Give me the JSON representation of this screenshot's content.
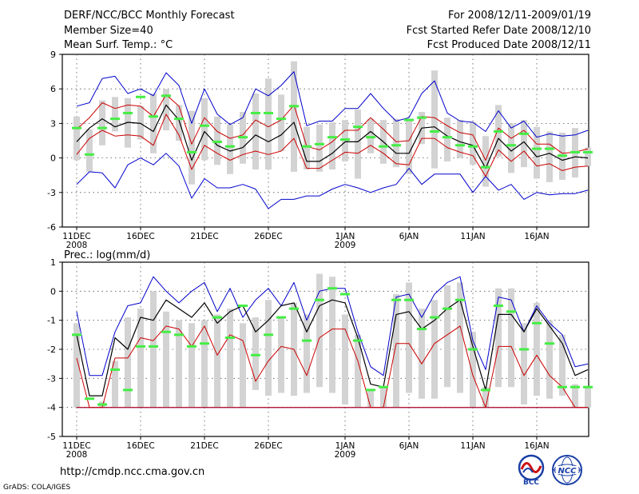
{
  "header": {
    "title": "DERF/NCC/BCC Monthly Forecast",
    "member_size": "Member Size=40",
    "variable_label": "Mean Surf. Temp.: °C",
    "forecast_period": "For 2008/12/11-2009/01/19",
    "started_refer": "Fcst Started Refer Date 2008/12/10",
    "produced": "Fcst Produced Date 2008/12/11"
  },
  "footer": {
    "url": "http://cmdp.ncc.cma.gov.cn",
    "credit": "GrADS: COLA/IGES",
    "logo1_text": "BCC",
    "logo2_text": "NCC"
  },
  "colors": {
    "bar": "#d3d3d3",
    "mean": "#000000",
    "spread_inner": "#cc0000",
    "spread_outer": "#0000cc",
    "marker": "#44ee44",
    "grid": "#555555"
  },
  "chart_data": [
    {
      "type": "line",
      "title": "",
      "ylabel": "Mean Surf. Temp.: °C",
      "ylim": [
        -6,
        9
      ],
      "yticks": [
        -6,
        -3,
        0,
        3,
        6,
        9
      ],
      "x_ticks": [
        {
          "day": 0,
          "label": "11DEC",
          "sub": "2008"
        },
        {
          "day": 5,
          "label": "16DEC",
          "sub": ""
        },
        {
          "day": 10,
          "label": "21DEC",
          "sub": ""
        },
        {
          "day": 15,
          "label": "26DEC",
          "sub": ""
        },
        {
          "day": 21,
          "label": "1JAN",
          "sub": "2009"
        },
        {
          "day": 26,
          "label": "6JAN",
          "sub": ""
        },
        {
          "day": 31,
          "label": "11JAN",
          "sub": ""
        },
        {
          "day": 36,
          "label": "16JAN",
          "sub": ""
        }
      ],
      "mean": [
        1.4,
        2.6,
        3.4,
        2.7,
        3.1,
        3.0,
        2.3,
        4.6,
        3.3,
        -0.2,
        2.3,
        1.1,
        0.6,
        0.9,
        2.0,
        1.4,
        2.0,
        3.1,
        -0.3,
        -0.3,
        0.4,
        1.4,
        1.4,
        2.3,
        1.4,
        0.4,
        0.4,
        2.6,
        2.7,
        1.9,
        1.4,
        1.1,
        -0.9,
        1.7,
        0.6,
        1.4,
        0.1,
        0.4,
        -0.2,
        0.1,
        0.0
      ],
      "red_upper": [
        2.5,
        3.5,
        4.8,
        4.3,
        4.6,
        4.5,
        3.6,
        5.5,
        4.5,
        1.2,
        3.5,
        2.3,
        1.7,
        2.0,
        3.3,
        2.7,
        3.3,
        4.6,
        1.0,
        0.7,
        1.4,
        2.4,
        2.4,
        3.5,
        2.5,
        1.4,
        1.5,
        3.6,
        3.5,
        2.8,
        2.2,
        2.0,
        -0.2,
        2.6,
        1.7,
        2.4,
        1.2,
        1.2,
        0.4,
        0.5,
        0.8
      ],
      "red_lower": [
        0.3,
        1.7,
        2.4,
        1.9,
        2.0,
        1.9,
        1.1,
        3.8,
        2.0,
        -1.0,
        1.1,
        0.4,
        -0.2,
        0.3,
        0.6,
        0.3,
        0.6,
        1.7,
        -0.9,
        -0.9,
        -0.2,
        0.5,
        0.4,
        1.1,
        0.4,
        -0.5,
        -0.6,
        1.7,
        1.7,
        0.9,
        0.5,
        0.2,
        -1.6,
        0.7,
        -0.3,
        0.6,
        -0.7,
        -0.5,
        -1.1,
        -0.8,
        -0.7
      ],
      "blue_upper": [
        4.5,
        4.8,
        6.9,
        7.1,
        5.6,
        6.0,
        5.4,
        7.4,
        6.3,
        3.0,
        6.0,
        3.8,
        2.9,
        3.5,
        6.0,
        5.4,
        6.3,
        7.5,
        2.8,
        3.2,
        3.2,
        4.3,
        4.3,
        5.6,
        4.3,
        3.2,
        3.5,
        5.6,
        6.7,
        3.9,
        3.2,
        3.1,
        2.3,
        4.1,
        2.6,
        3.2,
        1.8,
        2.1,
        1.9,
        2.0,
        2.4
      ],
      "blue_lower": [
        -2.3,
        -1.2,
        -1.3,
        -2.6,
        -0.6,
        0.0,
        -0.6,
        0.4,
        -0.7,
        -3.5,
        -1.8,
        -2.6,
        -2.6,
        -2.3,
        -2.7,
        -4.4,
        -3.6,
        -3.6,
        -3.3,
        -3.3,
        -2.7,
        -2.3,
        -2.6,
        -3.0,
        -2.6,
        -2.3,
        -0.9,
        -2.3,
        -1.4,
        -1.4,
        -1.4,
        -3.0,
        -1.6,
        -2.8,
        -2.3,
        -3.6,
        -3.0,
        -3.2,
        -3.1,
        -3.1,
        -2.8
      ],
      "bar_top": [
        3.6,
        2.5,
        5.0,
        5.3,
        5.2,
        4.5,
        5.6,
        6.0,
        4.6,
        4.1,
        5.2,
        3.6,
        2.9,
        4.0,
        5.6,
        6.9,
        5.5,
        8.4,
        2.7,
        2.9,
        3.1,
        3.3,
        4.2,
        3.4,
        3.3,
        3.4,
        3.3,
        4.0,
        7.6,
        3.5,
        3.3,
        3.1,
        1.9,
        4.6,
        3.0,
        3.3,
        2.7,
        2.3,
        2.2,
        2.6,
        0.9
      ],
      "bar_bottom": [
        -0.2,
        -1.2,
        1.1,
        2.3,
        0.9,
        1.6,
        0.4,
        2.4,
        1.5,
        -2.3,
        -0.2,
        -0.6,
        -1.4,
        -0.5,
        -1.0,
        -1.0,
        0.6,
        -1.2,
        -1.0,
        -1.2,
        -1.0,
        -0.3,
        -1.8,
        0.4,
        -0.5,
        -0.8,
        -1.4,
        1.2,
        -0.9,
        -0.3,
        0.0,
        -0.6,
        -2.5,
        0.1,
        -1.3,
        -0.8,
        -1.8,
        -2.1,
        -1.9,
        -1.7,
        -0.7
      ],
      "markers": [
        2.6,
        0.3,
        2.6,
        3.4,
        3.9,
        5.3,
        3.6,
        5.4,
        3.4,
        0.5,
        2.8,
        1.4,
        1.0,
        1.8,
        3.9,
        3.9,
        3.4,
        4.5,
        1.0,
        1.2,
        1.8,
        1.6,
        2.7,
        1.8,
        1.0,
        1.1,
        3.3,
        3.5,
        2.3,
        1.8,
        1.1,
        1.0,
        -0.8,
        2.3,
        1.1,
        2.1,
        0.8,
        0.8,
        0.2,
        0.5,
        0.5
      ]
    },
    {
      "type": "line",
      "title": "",
      "ylabel": "Prec.: log(mm/d)",
      "ylim": [
        -5,
        1
      ],
      "yticks": [
        -5,
        -4,
        -3,
        -2,
        -1,
        0,
        1
      ],
      "x_ticks": [
        {
          "day": 0,
          "label": "11DEC",
          "sub": "2008"
        },
        {
          "day": 5,
          "label": "16DEC",
          "sub": ""
        },
        {
          "day": 10,
          "label": "21DEC",
          "sub": ""
        },
        {
          "day": 15,
          "label": "26DEC",
          "sub": ""
        },
        {
          "day": 21,
          "label": "1JAN",
          "sub": "2009"
        },
        {
          "day": 26,
          "label": "6JAN",
          "sub": ""
        },
        {
          "day": 31,
          "label": "11JAN",
          "sub": ""
        },
        {
          "day": 36,
          "label": "16JAN",
          "sub": ""
        }
      ],
      "mean": [
        -1.5,
        -3.6,
        -3.6,
        -1.6,
        -2.0,
        -0.9,
        -1.0,
        -0.3,
        -0.6,
        -0.9,
        -0.4,
        -1.1,
        -0.7,
        -0.5,
        -1.4,
        -1.0,
        -0.5,
        -0.4,
        -1.4,
        -0.5,
        -0.3,
        -0.4,
        -1.6,
        -3.2,
        -3.3,
        -0.8,
        -0.7,
        -1.3,
        -1.0,
        -0.6,
        -0.3,
        -1.9,
        -3.4,
        -0.8,
        -0.8,
        -1.4,
        -0.6,
        -1.2,
        -1.8,
        -2.9,
        -2.7
      ],
      "red_upper": [
        -2.3,
        -4.0,
        -4.0,
        -2.3,
        -2.3,
        -1.6,
        -1.7,
        -1.2,
        -1.3,
        -1.9,
        -1.2,
        -2.2,
        -1.5,
        -1.7,
        -3.1,
        -2.4,
        -1.9,
        -2.0,
        -2.9,
        -1.6,
        -1.3,
        -1.3,
        -2.4,
        -4.0,
        -4.0,
        -1.8,
        -1.8,
        -2.5,
        -1.8,
        -1.5,
        -1.2,
        -2.9,
        -4.0,
        -1.9,
        -1.9,
        -2.9,
        -2.2,
        -2.9,
        -3.3,
        -4.0,
        -4.0
      ],
      "red_lower": [
        -4.0,
        -4.0,
        -4.0,
        -4.0,
        -4.0,
        -4.0,
        -4.0,
        -4.0,
        -4.0,
        -4.0,
        -4.0,
        -4.0,
        -4.0,
        -4.0,
        -4.0,
        -4.0,
        -4.0,
        -4.0,
        -4.0,
        -4.0,
        -4.0,
        -4.0,
        -4.0,
        -4.0,
        -4.0,
        -4.0,
        -4.0,
        -4.0,
        -4.0,
        -4.0,
        -4.0,
        -4.0,
        -4.0,
        -4.0,
        -4.0,
        -4.0,
        -4.0,
        -4.0,
        -4.0,
        -4.0,
        -4.0
      ],
      "blue_upper": [
        -0.7,
        -2.9,
        -2.9,
        -1.4,
        -0.5,
        -0.4,
        0.5,
        0.0,
        -0.4,
        0.0,
        0.3,
        -0.7,
        0.1,
        -0.9,
        -0.3,
        0.1,
        -0.5,
        0.3,
        -1.0,
        0.0,
        0.1,
        0.1,
        -1.4,
        -2.6,
        -2.9,
        -0.2,
        -0.1,
        -0.9,
        -0.1,
        0.3,
        0.5,
        -1.7,
        -2.7,
        -0.2,
        -0.3,
        -1.4,
        -0.5,
        -1.1,
        -1.5,
        -2.6,
        -2.5
      ],
      "blue_lower": [
        -4.0,
        -4.0,
        -4.0,
        -4.0,
        -4.0,
        -4.0,
        -4.0,
        -4.0,
        -4.0,
        -4.0,
        -4.0,
        -4.0,
        -4.0,
        -4.0,
        -4.0,
        -4.0,
        -4.0,
        -4.0,
        -4.0,
        -4.0,
        -4.0,
        -4.0,
        -4.0,
        -4.0,
        -4.0,
        -4.0,
        -4.0,
        -4.0,
        -4.0,
        -4.0,
        -4.0,
        -4.0,
        -4.0,
        -4.0,
        -4.0,
        -4.0,
        -4.0,
        -4.0,
        -4.0,
        -4.0,
        -4.0
      ],
      "bar_top": [
        -1.1,
        -4.0,
        -3.8,
        -2.4,
        -0.9,
        -0.6,
        0.0,
        -0.7,
        -1.0,
        -1.1,
        -1.0,
        -0.8,
        -0.6,
        -1.1,
        -0.9,
        -0.3,
        -0.9,
        -0.4,
        -0.8,
        0.6,
        0.5,
        -0.8,
        -1.5,
        -3.4,
        -3.3,
        -0.1,
        0.3,
        -0.6,
        -0.3,
        0.2,
        0.3,
        -1.4,
        -3.3,
        0.1,
        0.1,
        -1.1,
        -0.4,
        -1.0,
        -1.5,
        -3.2,
        -3.3
      ],
      "bar_bottom": [
        -4.0,
        -4.0,
        -4.0,
        -4.0,
        -4.0,
        -4.0,
        -4.0,
        -4.0,
        -4.0,
        -4.0,
        -4.0,
        -4.0,
        -4.0,
        -4.0,
        -3.4,
        -3.6,
        -3.5,
        -3.6,
        -3.5,
        -3.3,
        -3.5,
        -3.9,
        -4.0,
        -4.0,
        -4.0,
        -4.0,
        -3.5,
        -3.7,
        -3.7,
        -3.3,
        -3.5,
        -4.0,
        -4.0,
        -3.3,
        -3.3,
        -3.9,
        -3.6,
        -3.7,
        -3.6,
        -4.0,
        -4.0
      ],
      "markers": [
        -1.5,
        -3.7,
        -3.9,
        -2.7,
        -3.4,
        -1.9,
        -1.9,
        -1.4,
        -1.5,
        -1.9,
        -1.8,
        -0.9,
        -1.6,
        -0.5,
        -2.2,
        -1.5,
        -0.9,
        -0.6,
        -1.7,
        -0.3,
        0.1,
        -0.1,
        -1.7,
        -3.4,
        -3.3,
        -0.3,
        -0.3,
        -1.3,
        -0.9,
        -0.6,
        -0.3,
        -2.0,
        -3.4,
        -0.5,
        -0.7,
        -2.0,
        -1.1,
        -1.8,
        -3.3,
        -3.3,
        -3.3
      ]
    }
  ]
}
